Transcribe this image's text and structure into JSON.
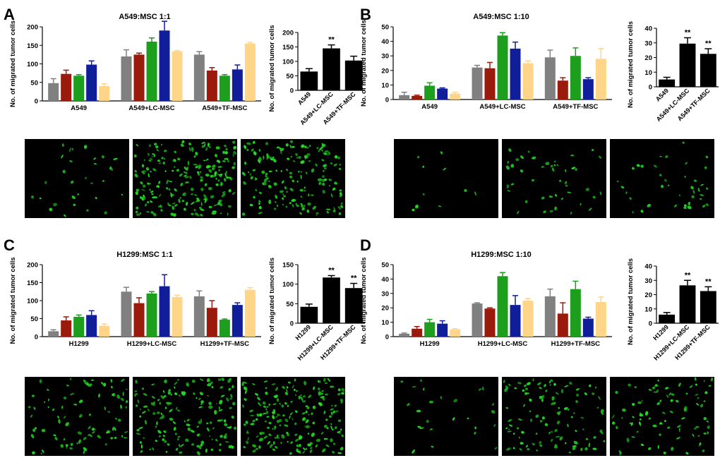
{
  "panels": [
    {
      "letter": "A",
      "main": {
        "title": "A549:MSC 1:1",
        "ylabel": "No. of migrated tumor cells",
        "ylim": [
          0,
          200
        ],
        "yticks": [
          0,
          50,
          100,
          150,
          200
        ],
        "groups": [
          {
            "label": "A549",
            "values": [
              48,
              73,
              68,
              98,
              40
            ],
            "errors": [
              12,
              10,
              3,
              10,
              6
            ]
          },
          {
            "label": "A549+LC-MSC",
            "values": [
              120,
              125,
              160,
              190,
              134
            ],
            "errors": [
              18,
              4,
              10,
              25,
              2
            ]
          },
          {
            "label": "A549+TF-MSC",
            "values": [
              125,
              82,
              68,
              85,
              155
            ],
            "errors": [
              8,
              8,
              3,
              12,
              3
            ]
          }
        ]
      },
      "side": {
        "ylabel": "No. of migrated tumor cells",
        "ylim": [
          0,
          200
        ],
        "yticks": [
          0,
          50,
          100,
          150,
          200
        ],
        "categories": [
          "A549",
          "A549+LC-MSC",
          "A549+TF-MSC"
        ],
        "values": [
          65,
          145,
          103
        ],
        "errors": [
          10,
          12,
          15
        ],
        "stars": [
          "",
          "**",
          ""
        ]
      },
      "micrographs": [
        {
          "density": 30
        },
        {
          "density": 220
        },
        {
          "density": 170
        }
      ]
    },
    {
      "letter": "B",
      "main": {
        "title": "A549:MSC 1:10",
        "ylabel": "No. of migrated tumor cells",
        "ylim": [
          0,
          50
        ],
        "yticks": [
          0,
          10,
          20,
          30,
          40,
          50
        ],
        "groups": [
          {
            "label": "A549",
            "values": [
              3,
              2.5,
              9.5,
              7.5,
              4
            ],
            "errors": [
              2,
              0.5,
              2,
              0.5,
              1
            ]
          },
          {
            "label": "A549+LC-MSC",
            "values": [
              22,
              21.5,
              44,
              35,
              25
            ],
            "errors": [
              1.5,
              4,
              2,
              4.5,
              1.5
            ]
          },
          {
            "label": "A549+TF-MSC",
            "values": [
              29,
              13,
              30,
              14,
              28
            ],
            "errors": [
              5,
              2,
              5.5,
              1,
              7
            ]
          }
        ]
      },
      "side": {
        "ylabel": "No. of migrated tumor cells",
        "ylim": [
          0,
          40
        ],
        "yticks": [
          0,
          10,
          20,
          30,
          40
        ],
        "categories": [
          "A549",
          "A549+LC-MSC",
          "A549+TF-MSC"
        ],
        "values": [
          5,
          29.5,
          22.5
        ],
        "errors": [
          1.5,
          4,
          3.5
        ],
        "stars": [
          "",
          "**",
          "**"
        ]
      },
      "micrographs": [
        {
          "density": 10
        },
        {
          "density": 45
        },
        {
          "density": 40
        }
      ]
    },
    {
      "letter": "C",
      "main": {
        "title": "H1299:MSC 1:1",
        "ylabel": "No. of migrated tumor cells",
        "ylim": [
          0,
          200
        ],
        "yticks": [
          0,
          50,
          100,
          150,
          200
        ],
        "groups": [
          {
            "label": "H1299",
            "values": [
              15,
              45,
              55,
              60,
              30
            ],
            "errors": [
              4,
              10,
              5,
              12,
              5
            ]
          },
          {
            "label": "H1299+LC-MSC",
            "values": [
              125,
              93,
              120,
              140,
              110
            ],
            "errors": [
              12,
              15,
              5,
              32,
              5
            ]
          },
          {
            "label": "H1299+TF-MSC",
            "values": [
              112,
              80,
              47,
              88,
              130
            ],
            "errors": [
              15,
              20,
              2,
              6,
              6
            ]
          }
        ]
      },
      "side": {
        "ylabel": "No. of migrated tumor cells",
        "ylim": [
          0,
          150
        ],
        "yticks": [
          0,
          50,
          100,
          150
        ],
        "categories": [
          "H1299",
          "H1299+LC-MSC",
          "H1299+TF-MSC"
        ],
        "values": [
          42,
          117,
          90
        ],
        "errors": [
          7,
          5,
          12
        ],
        "stars": [
          "",
          "**",
          "**"
        ]
      },
      "micrographs": [
        {
          "density": 90
        },
        {
          "density": 160
        },
        {
          "density": 200
        }
      ]
    },
    {
      "letter": "D",
      "main": {
        "title": "H1299:MSC 1:10",
        "ylabel": "No. of migrated tumor cells",
        "ylim": [
          0,
          50
        ],
        "yticks": [
          0,
          10,
          20,
          30,
          40,
          50
        ],
        "groups": [
          {
            "label": "H1299",
            "values": [
              2,
              5.5,
              10,
              9,
              5
            ],
            "errors": [
              0.5,
              1.5,
              2,
              2,
              0.5
            ]
          },
          {
            "label": "H1299+LC-MSC",
            "values": [
              23,
              19.5,
              42,
              22,
              25
            ],
            "errors": [
              0.5,
              0.5,
              2.5,
              6.5,
              1.5
            ]
          },
          {
            "label": "H1299+TF-MSC",
            "values": [
              28,
              16,
              33,
              12.5,
              24
            ],
            "errors": [
              5,
              7.5,
              5.5,
              1,
              3.5
            ]
          }
        ]
      },
      "side": {
        "ylabel": "No. of migrated tumor cells",
        "ylim": [
          0,
          40
        ],
        "yticks": [
          0,
          10,
          20,
          30,
          40
        ],
        "categories": [
          "H1299",
          "H1299+LC-MSC",
          "H1299+TF-MSC"
        ],
        "values": [
          6,
          26.5,
          22.5
        ],
        "errors": [
          1.5,
          3.5,
          3
        ],
        "stars": [
          "",
          "**",
          "**"
        ]
      },
      "micrographs": [
        {
          "density": 25
        },
        {
          "density": 110
        },
        {
          "density": 90
        }
      ]
    }
  ],
  "colors": {
    "bars": [
      "#808080",
      "#9a1a0c",
      "#1d9e1d",
      "#101e9a",
      "#ffd58a"
    ],
    "side_bar": "#000000",
    "axis": "#000000",
    "cell": "#22dd22"
  }
}
